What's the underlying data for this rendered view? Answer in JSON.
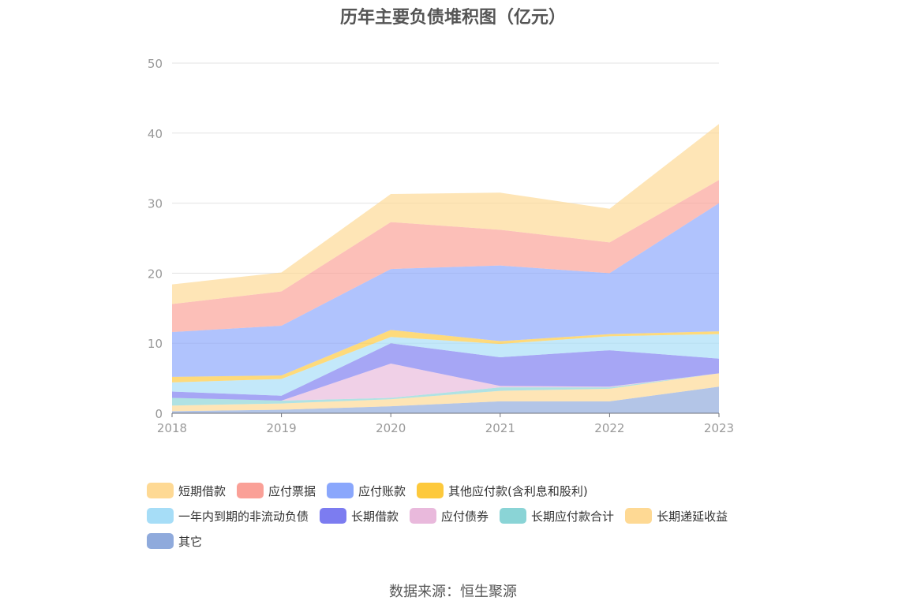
{
  "chart_data": {
    "type": "area",
    "title": "历年主要负债堆积图（亿元）",
    "x": [
      "2018",
      "2019",
      "2020",
      "2021",
      "2022",
      "2023"
    ],
    "ylim": [
      0,
      50
    ],
    "yticks": [
      0,
      10,
      20,
      30,
      40,
      50
    ],
    "grid": true,
    "legend_position": "bottom",
    "stacked": true,
    "series": [
      {
        "name": "其它",
        "color": "#8faadc",
        "values": [
          0.3,
          0.5,
          1.0,
          1.7,
          1.7,
          3.8
        ]
      },
      {
        "name": "长期递延收益",
        "color": "#fed994",
        "values": [
          0.8,
          0.9,
          1.0,
          1.5,
          1.8,
          1.9
        ]
      },
      {
        "name": "长期应付款合计",
        "color": "#8ad4d6",
        "values": [
          1.1,
          0.4,
          0.2,
          0.5,
          0.2,
          0.0
        ]
      },
      {
        "name": "应付债券",
        "color": "#e9b9dc",
        "values": [
          0.0,
          0.0,
          4.9,
          0.2,
          0.1,
          0.0
        ]
      },
      {
        "name": "长期借款",
        "color": "#7c7cf0",
        "values": [
          0.9,
          0.7,
          2.9,
          4.1,
          5.2,
          2.1
        ]
      },
      {
        "name": "一年内到期的非流动负债",
        "color": "#a6ddf7",
        "values": [
          1.3,
          2.4,
          0.9,
          1.9,
          2.0,
          3.5
        ]
      },
      {
        "name": "其他应付款(含利息和股利)",
        "color": "#fdc93c",
        "values": [
          0.8,
          0.5,
          1.0,
          0.4,
          0.3,
          0.4
        ]
      },
      {
        "name": "应付账款",
        "color": "#8aa7fc",
        "values": [
          6.4,
          7.1,
          8.7,
          10.8,
          8.7,
          18.3
        ]
      },
      {
        "name": "应付票据",
        "color": "#faa097",
        "values": [
          4.0,
          4.9,
          6.7,
          5.1,
          4.4,
          3.3
        ]
      },
      {
        "name": "短期借款",
        "color": "#fed994",
        "values": [
          2.8,
          2.7,
          4.0,
          5.3,
          4.8,
          8.0
        ]
      }
    ]
  },
  "legend": [
    [
      {
        "name": "短期借款",
        "color": "#fed994"
      },
      {
        "name": "应付票据",
        "color": "#faa097"
      },
      {
        "name": "应付账款",
        "color": "#8aa7fc"
      },
      {
        "name": "其他应付款(含利息和股利)",
        "color": "#fdc93c"
      }
    ],
    [
      {
        "name": "一年内到期的非流动负债",
        "color": "#a6ddf7"
      },
      {
        "name": "长期借款",
        "color": "#7c7cf0"
      },
      {
        "name": "应付债券",
        "color": "#e9b9dc"
      },
      {
        "name": "长期应付款合计",
        "color": "#8ad4d6"
      },
      {
        "name": "长期递延收益",
        "color": "#fed994"
      }
    ],
    [
      {
        "name": "其它",
        "color": "#8faadc"
      }
    ]
  ],
  "source": "数据来源：恒生聚源"
}
